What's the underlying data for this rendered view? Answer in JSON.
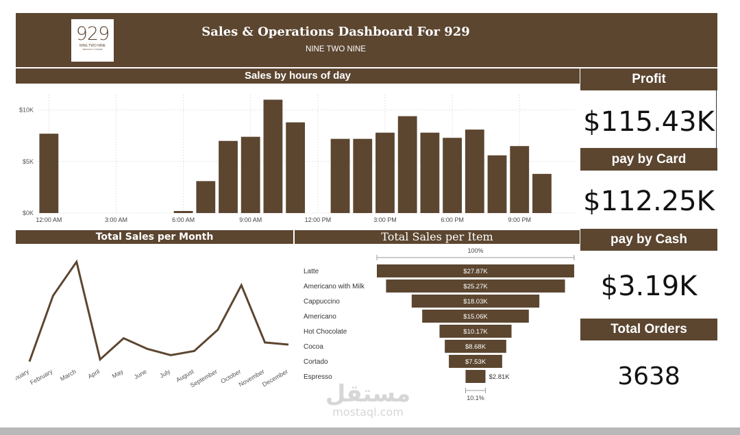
{
  "header": {
    "title": "Sales & Operations Dashboard For 929",
    "subtitle": "NINE TWO NINE",
    "logo_number": "929",
    "logo_text": "NINE TWO NINE",
    "logo_small": "SPECIALTY COFFEE"
  },
  "panels": {
    "hours_title": "Sales by hours of day",
    "month_title": "Total Sales per Month",
    "item_title": "Total Sales per Item"
  },
  "kpis": {
    "profit_label": "Profit",
    "profit_value": "$115.43K",
    "card_label": "pay by Card",
    "card_value": "$112.25K",
    "cash_label": "pay by Cash",
    "cash_value": "$3.19K",
    "orders_label": "Total Orders",
    "orders_value": "3638"
  },
  "watermark": {
    "arabic": "مستقل",
    "latin": "mostaql.com"
  },
  "colors": {
    "brand": "#5c4630",
    "line": "#5c4630",
    "grid": "#e3e3e3"
  },
  "chart_data": [
    {
      "type": "bar",
      "title": "Sales by hours of day",
      "x": [
        0,
        1,
        2,
        3,
        4,
        5,
        6,
        7,
        8,
        9,
        10,
        11,
        12,
        13,
        14,
        15,
        16,
        17,
        18,
        19,
        20,
        21,
        22,
        23
      ],
      "values": [
        7700,
        0,
        0,
        0,
        0,
        0,
        200,
        3100,
        7000,
        7400,
        11000,
        8800,
        0,
        7200,
        7200,
        7800,
        9400,
        7800,
        7300,
        8100,
        5600,
        6500,
        3800,
        0
      ],
      "tick_labels": [
        "12:00 AM",
        "3:00 AM",
        "6:00 AM",
        "9:00 AM",
        "12:00 PM",
        "3:00 PM",
        "6:00 PM",
        "9:00 PM"
      ],
      "tick_positions": [
        0,
        3,
        6,
        9,
        12,
        15,
        18,
        21
      ],
      "y_ticks": [
        0,
        5000,
        10000
      ],
      "y_tick_labels": [
        "$0K",
        "$5K",
        "$10K"
      ],
      "ylim": [
        0,
        11500
      ],
      "grid": true
    },
    {
      "type": "line",
      "title": "Total Sales per Month",
      "categories": [
        "January",
        "February",
        "March",
        "April",
        "May",
        "June",
        "July",
        "August",
        "September",
        "October",
        "November",
        "December"
      ],
      "values": [
        7500,
        10600,
        12200,
        7600,
        8600,
        8100,
        7800,
        8000,
        9000,
        11100,
        8400,
        8300
      ],
      "ylim": [
        7300,
        12400
      ]
    },
    {
      "type": "bar",
      "orientation": "funnel",
      "title": "Total Sales per Item",
      "categories": [
        "Latte",
        "Americano with Milk",
        "Cappuccino",
        "Americano",
        "Hot Chocolate",
        "Cocoa",
        "Cortado",
        "Espresso"
      ],
      "values": [
        27.87,
        25.27,
        18.03,
        15.06,
        10.17,
        8.68,
        7.53,
        2.81
      ],
      "value_labels": [
        "$27.87K",
        "$25.27K",
        "$18.03K",
        "$15.06K",
        "$10.17K",
        "$8.68K",
        "$7.53K",
        "$2.81K"
      ],
      "top_percent": "100%",
      "bottom_percent": "10.1%"
    }
  ]
}
